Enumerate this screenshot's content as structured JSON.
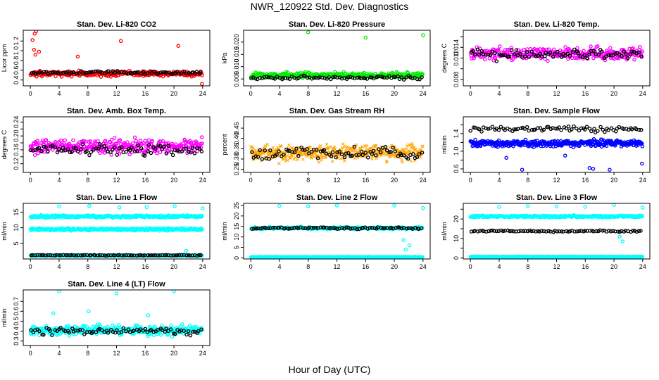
{
  "figure": {
    "title": "NWR_120922  Std. Dev. Diagnostics",
    "xlabel": "Hour of Day (UTC)"
  },
  "colors": {
    "red": "#ff0000",
    "green": "#00ee00",
    "magenta": "#ff00ff",
    "orange": "#ffa500",
    "blue": "#0000ff",
    "cyan": "#00ffff",
    "black": "#000000"
  },
  "chart_data": [
    {
      "type": "scatter",
      "title": "Stan. Dev. Li-820 CO2",
      "xlabel": "",
      "ylabel": "Licor ppm",
      "xlim": [
        -1,
        25
      ],
      "xticks": [
        0,
        4,
        8,
        12,
        16,
        20,
        24
      ],
      "ylim": [
        0.28,
        1.42
      ],
      "yticks": [
        0.4,
        0.6,
        0.8,
        1.0,
        1.2
      ],
      "ytick_labels": [
        "0.4",
        "0.6",
        "0.8",
        "1.0",
        "1.2"
      ],
      "series": [
        {
          "color": "red",
          "marker": "o",
          "base": 0.53,
          "spread": 0.05,
          "count": 260,
          "outliers": [
            [
              0.6,
              1.35
            ],
            [
              0.8,
              1.4
            ],
            [
              0.3,
              1.22
            ],
            [
              0.5,
              1.02
            ],
            [
              0.7,
              0.92
            ],
            [
              1.2,
              0.98
            ],
            [
              6.6,
              0.88
            ],
            [
              12.6,
              1.2
            ],
            [
              20.6,
              1.1
            ],
            [
              23.9,
              0.32
            ]
          ]
        },
        {
          "color": "black",
          "marker": "o",
          "base": 0.55,
          "spread": 0.03,
          "count": 80
        }
      ]
    },
    {
      "type": "scatter",
      "title": "Stan. Dev. Li-820 Pressure",
      "xlabel": "",
      "ylabel": "kPa",
      "xlim": [
        -1,
        25
      ],
      "xticks": [
        0,
        4,
        8,
        12,
        16,
        20,
        24
      ],
      "ylim": [
        0.0022,
        0.0248
      ],
      "yticks": [
        0.005,
        0.01,
        0.015,
        0.02
      ],
      "ytick_labels": [
        "0.005",
        "0.010",
        "0.015",
        "0.020"
      ],
      "series": [
        {
          "color": "green",
          "marker": "o",
          "base": 0.0065,
          "spread": 0.0011,
          "count": 280,
          "outliers": [
            [
              8,
              0.024
            ],
            [
              16,
              0.0218
            ],
            [
              24,
              0.0228
            ]
          ]
        },
        {
          "color": "black",
          "marker": "o",
          "base": 0.0055,
          "spread": 0.0008,
          "count": 80
        }
      ]
    },
    {
      "type": "scatter",
      "title": "Stan. Dev. Li-820 Temp.",
      "xlabel": "",
      "ylabel": "degrees C",
      "xlim": [
        -1,
        25
      ],
      "xticks": [
        0,
        4,
        8,
        12,
        16,
        20,
        24
      ],
      "ylim": [
        0.0068,
        0.0172
      ],
      "yticks": [
        0.008,
        0.01,
        0.012,
        0.014,
        0.016
      ],
      "ytick_labels": [
        "0.008",
        "",
        "0.012",
        "0.014",
        ""
      ],
      "series": [
        {
          "color": "magenta",
          "marker": "o",
          "base": 0.0128,
          "spread": 0.0011,
          "count": 300
        },
        {
          "color": "black",
          "marker": "o",
          "base": 0.0127,
          "spread": 0.0009,
          "count": 80
        }
      ]
    },
    {
      "type": "scatter",
      "title": "Stan. Dev. Amb. Box Temp.",
      "xlabel": "",
      "ylabel": "degrees C",
      "xlim": [
        -1,
        25
      ],
      "xticks": [
        0,
        4,
        8,
        12,
        16,
        20,
        24
      ],
      "ylim": [
        0.095,
        0.255
      ],
      "yticks": [
        0.12,
        0.14,
        0.16,
        0.18,
        0.2,
        0.22,
        0.24
      ],
      "ytick_labels": [
        "0.12",
        "",
        "0.16",
        "",
        "0.20",
        "",
        "0.24"
      ],
      "series": [
        {
          "color": "magenta",
          "marker": "o",
          "base": 0.17,
          "spread": 0.02,
          "count": 320
        },
        {
          "color": "black",
          "marker": "o",
          "base": 0.16,
          "spread": 0.014,
          "count": 80
        }
      ]
    },
    {
      "type": "scatter",
      "title": "Stan. Dev. Gas Stream RH",
      "xlabel": "",
      "ylabel": "percent",
      "xlim": [
        -1,
        25
      ],
      "xticks": [
        0,
        4,
        8,
        12,
        16,
        20,
        24
      ],
      "ylim": [
        0.235,
        0.505
      ],
      "yticks": [
        0.25,
        0.3,
        0.35,
        0.4,
        0.45
      ],
      "ytick_labels": [
        "0.25",
        "0.30",
        "0.35",
        "0.40",
        "0.45"
      ],
      "series": [
        {
          "color": "orange",
          "marker": "x",
          "base": 0.33,
          "spread": 0.035,
          "count": 420
        },
        {
          "color": "black",
          "marker": "o",
          "base": 0.33,
          "spread": 0.028,
          "count": 80
        }
      ]
    },
    {
      "type": "scatter",
      "title": "Stan. Dev. Sample Flow",
      "xlabel": "",
      "ylabel": "ml/min",
      "xlim": [
        -1,
        25
      ],
      "xticks": [
        0,
        4,
        8,
        12,
        16,
        20,
        24
      ],
      "ylim": [
        0.52,
        1.78
      ],
      "yticks": [
        0.6,
        0.8,
        1.0,
        1.2,
        1.4,
        1.6
      ],
      "ytick_labels": [
        "0.6",
        "",
        "1.0",
        "",
        "1.4",
        ""
      ],
      "series": [
        {
          "color": "blue",
          "marker": "o",
          "base": 1.18,
          "spread": 0.07,
          "count": 360,
          "outliers": [
            [
              7.2,
              0.58
            ],
            [
              16.6,
              0.62
            ],
            [
              17.1,
              0.6
            ],
            [
              19.4,
              0.58
            ],
            [
              23.9,
              0.72
            ],
            [
              5.0,
              0.85
            ],
            [
              13.2,
              0.9
            ]
          ]
        },
        {
          "color": "black",
          "marker": "o",
          "base": 1.5,
          "spread": 0.06,
          "count": 80
        }
      ]
    },
    {
      "type": "scatter",
      "title": "Stan. Dev. Line 1 Flow",
      "xlabel": "",
      "ylabel": "ml/min",
      "xlim": [
        -1,
        25
      ],
      "xticks": [
        0,
        4,
        8,
        12,
        16,
        20,
        24
      ],
      "ylim": [
        0.0,
        17.8
      ],
      "yticks": [
        5,
        10,
        15
      ],
      "ytick_labels": [
        "5",
        "10",
        "15"
      ],
      "series": [
        {
          "color": "cyan",
          "marker": "o",
          "base": 13.6,
          "spread": 0.35,
          "count": 300,
          "outliers": [
            [
              4,
              16.8
            ],
            [
              8.2,
              17.0
            ],
            [
              12.4,
              16.5
            ],
            [
              16.2,
              16.6
            ],
            [
              20.1,
              16.9
            ],
            [
              24,
              16.2
            ]
          ]
        },
        {
          "color": "cyan",
          "marker": "o",
          "base": 9.5,
          "spread": 0.35,
          "count": 300
        },
        {
          "color": "cyan",
          "marker": "o",
          "base": 1.0,
          "spread": 0.12,
          "count": 200,
          "outliers": [
            [
              21.7,
              2.6
            ]
          ]
        },
        {
          "color": "black",
          "marker": "o",
          "base": 1.2,
          "spread": 0.12,
          "count": 80
        }
      ]
    },
    {
      "type": "scatter",
      "title": "Stan. Dev. Line 2 Flow",
      "xlabel": "",
      "ylabel": "ml/min",
      "xlim": [
        -1,
        25
      ],
      "xticks": [
        0,
        4,
        8,
        12,
        16,
        20,
        24
      ],
      "ylim": [
        -0.5,
        26.0
      ],
      "yticks": [
        0,
        5,
        10,
        15,
        20,
        25
      ],
      "ytick_labels": [
        "0",
        "5",
        "10",
        "15",
        "20",
        "25"
      ],
      "series": [
        {
          "color": "cyan",
          "marker": "o",
          "base": 14.2,
          "spread": 0.5,
          "count": 260,
          "outliers": [
            [
              4,
              24.8
            ],
            [
              8,
              24.6
            ],
            [
              12,
              25.0
            ],
            [
              20,
              25.0
            ],
            [
              24,
              23.8
            ],
            [
              21.3,
              8.5
            ],
            [
              22.1,
              6.0
            ],
            [
              21.6,
              4.0
            ]
          ]
        },
        {
          "color": "cyan",
          "marker": "o",
          "base": 0.4,
          "spread": 0.15,
          "count": 300
        },
        {
          "color": "black",
          "marker": "o",
          "base": 14.2,
          "spread": 0.4,
          "count": 80
        }
      ]
    },
    {
      "type": "scatter",
      "title": "Stan. Dev. Line 3 Flow",
      "xlabel": "",
      "ylabel": "ml/min",
      "xlim": [
        -1,
        25
      ],
      "xticks": [
        0,
        4,
        8,
        12,
        16,
        20,
        24
      ],
      "ylim": [
        -0.5,
        28.0
      ],
      "yticks": [
        0,
        5,
        10,
        15,
        20,
        25
      ],
      "ytick_labels": [
        "0",
        "",
        "10",
        "",
        "20",
        ""
      ],
      "series": [
        {
          "color": "cyan",
          "marker": "o",
          "base": 21.3,
          "spread": 0.5,
          "count": 280,
          "outliers": [
            [
              4,
              26.2
            ],
            [
              8,
              26.6
            ],
            [
              12,
              26.4
            ],
            [
              16,
              26.2
            ],
            [
              20,
              27.2
            ],
            [
              24,
              25.8
            ],
            [
              20.8,
              11.0
            ],
            [
              21.2,
              8.5
            ]
          ]
        },
        {
          "color": "cyan",
          "marker": "o",
          "base": 0.6,
          "spread": 0.15,
          "count": 300
        },
        {
          "color": "black",
          "marker": "o",
          "base": 13.8,
          "spread": 0.4,
          "count": 80
        }
      ]
    },
    {
      "type": "scatter",
      "title": "Stan. Dev. Line 4 (LT) Flow",
      "xlabel": "",
      "ylabel": "ml/min",
      "xlim": [
        -1,
        25
      ],
      "xticks": [
        0,
        4,
        8,
        12,
        16,
        20,
        24
      ],
      "ylim": [
        0.255,
        0.815
      ],
      "yticks": [
        0.3,
        0.4,
        0.5,
        0.6,
        0.7
      ],
      "ytick_labels": [
        "0.3",
        "0.4",
        "0.5",
        "0.6",
        "0.7"
      ],
      "series": [
        {
          "color": "cyan",
          "marker": "o",
          "base": 0.41,
          "spread": 0.045,
          "count": 320,
          "outliers": [
            [
              4,
              0.8
            ],
            [
              12,
              0.78
            ],
            [
              20,
              0.8
            ],
            [
              8.1,
              0.6
            ],
            [
              3.2,
              0.58
            ],
            [
              16.4,
              0.56
            ]
          ]
        },
        {
          "color": "black",
          "marker": "o",
          "base": 0.4,
          "spread": 0.035,
          "count": 80
        }
      ]
    }
  ]
}
